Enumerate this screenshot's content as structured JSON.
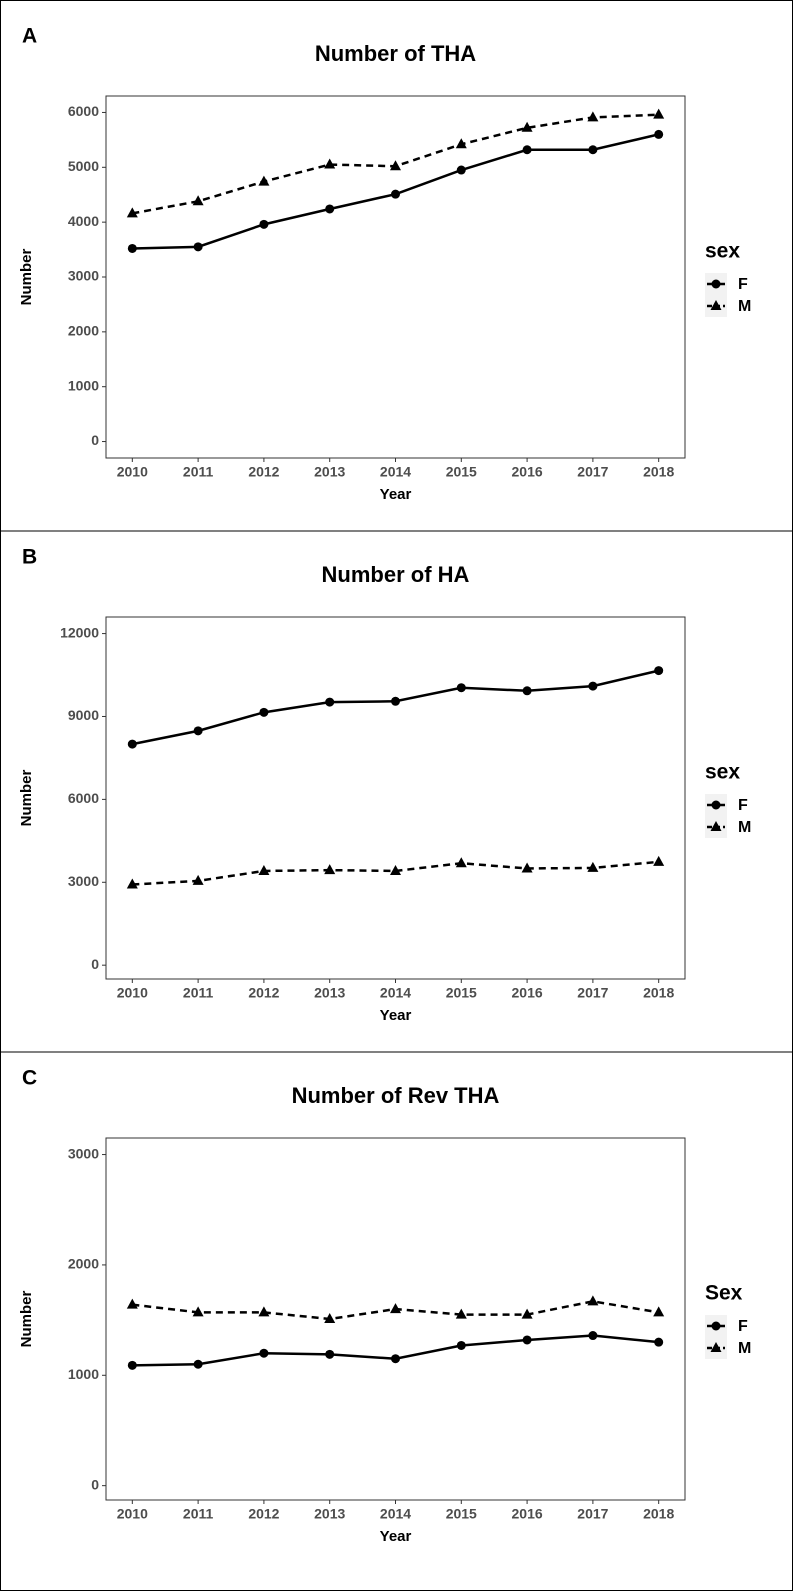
{
  "chart_data": [
    {
      "type": "line",
      "label": "A",
      "title": "Number of THA",
      "xlabel": "Year",
      "ylabel": "Number",
      "legend_title": "sex",
      "x": [
        2010,
        2011,
        2012,
        2013,
        2014,
        2015,
        2016,
        2017,
        2018
      ],
      "series": [
        {
          "name": "F",
          "color": "#000000",
          "marker": "circle",
          "linestyle": "solid",
          "values": [
            3520,
            3550,
            3960,
            4240,
            4510,
            4950,
            5320,
            5320,
            5600
          ]
        },
        {
          "name": "M",
          "color": "#000000",
          "marker": "triangle",
          "linestyle": "dashed",
          "values": [
            4160,
            4380,
            4740,
            5050,
            5020,
            5420,
            5720,
            5910,
            5960
          ]
        }
      ],
      "xlim": [
        2009.6,
        2018.4
      ],
      "xticks": [
        2010,
        2011,
        2012,
        2013,
        2014,
        2015,
        2016,
        2017,
        2018
      ],
      "ylim": [
        -300,
        6300
      ],
      "yticks": [
        0,
        1000,
        2000,
        3000,
        4000,
        5000,
        6000
      ],
      "legend": "right"
    },
    {
      "type": "line",
      "label": "B",
      "title": "Number of HA",
      "xlabel": "Year",
      "ylabel": "Number",
      "legend_title": "sex",
      "x": [
        2010,
        2011,
        2012,
        2013,
        2014,
        2015,
        2016,
        2017,
        2018
      ],
      "series": [
        {
          "name": "F",
          "color": "#000000",
          "marker": "circle",
          "linestyle": "solid",
          "values": [
            8000,
            8480,
            9150,
            9520,
            9550,
            10040,
            9930,
            10100,
            10660
          ]
        },
        {
          "name": "M",
          "color": "#000000",
          "marker": "triangle",
          "linestyle": "dashed",
          "values": [
            2920,
            3050,
            3410,
            3440,
            3410,
            3690,
            3500,
            3520,
            3740
          ]
        }
      ],
      "xlim": [
        2009.6,
        2018.4
      ],
      "xticks": [
        2010,
        2011,
        2012,
        2013,
        2014,
        2015,
        2016,
        2017,
        2018
      ],
      "ylim": [
        -500,
        12600
      ],
      "yticks": [
        0,
        3000,
        6000,
        9000,
        12000
      ],
      "legend": "right"
    },
    {
      "type": "line",
      "label": "C",
      "title": "Number of Rev THA",
      "xlabel": "Year",
      "ylabel": "Number",
      "legend_title": "Sex",
      "x": [
        2010,
        2011,
        2012,
        2013,
        2014,
        2015,
        2016,
        2017,
        2018
      ],
      "series": [
        {
          "name": "F",
          "color": "#000000",
          "marker": "circle",
          "linestyle": "solid",
          "values": [
            1090,
            1100,
            1200,
            1190,
            1150,
            1270,
            1320,
            1360,
            1300
          ]
        },
        {
          "name": "M",
          "color": "#000000",
          "marker": "triangle",
          "linestyle": "dashed",
          "values": [
            1640,
            1570,
            1570,
            1510,
            1600,
            1550,
            1550,
            1670,
            1570
          ]
        }
      ],
      "xlim": [
        2009.6,
        2018.4
      ],
      "xticks": [
        2010,
        2011,
        2012,
        2013,
        2014,
        2015,
        2016,
        2017,
        2018
      ],
      "ylim": [
        -130,
        3150
      ],
      "yticks": [
        0,
        1000,
        2000,
        3000
      ],
      "legend": "right"
    }
  ]
}
